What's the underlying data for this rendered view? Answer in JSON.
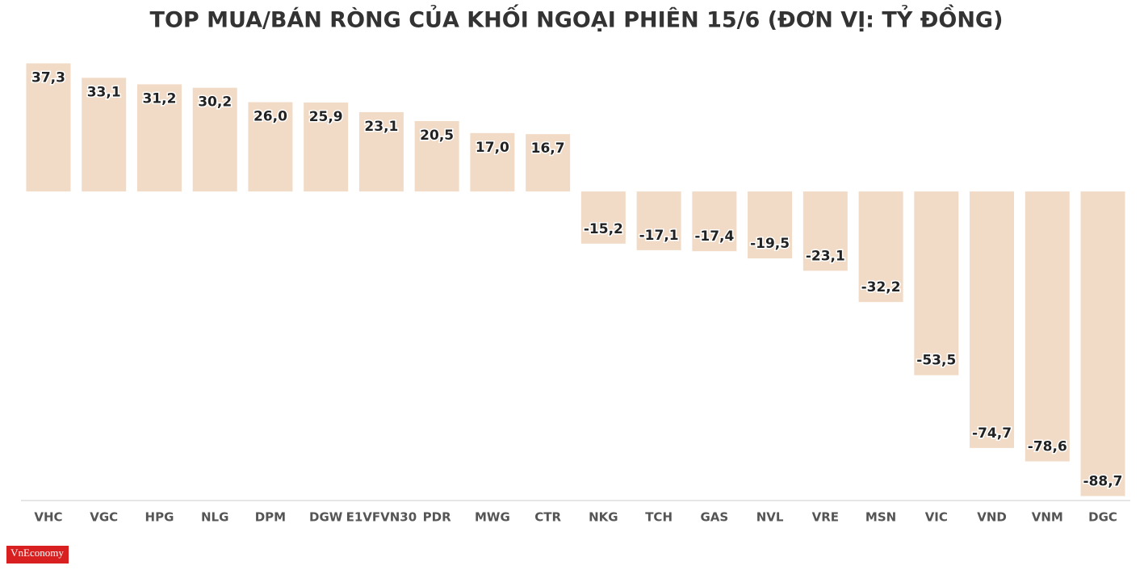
{
  "chart_data": {
    "type": "bar",
    "title": "TOP MUA/BÁN RÒNG CỦA KHỐI NGOẠI PHIÊN 15/6 (ĐƠN VỊ: TỶ ĐỒNG)",
    "categories": [
      "VHC",
      "VGC",
      "HPG",
      "NLG",
      "DPM",
      "DGW",
      "E1VFVN30",
      "PDR",
      "MWG",
      "CTR",
      "NKG",
      "TCH",
      "GAS",
      "NVL",
      "VRE",
      "MSN",
      "VIC",
      "VND",
      "VNM",
      "DGC"
    ],
    "values": [
      37.3,
      33.1,
      31.2,
      30.2,
      26.0,
      25.9,
      23.1,
      20.5,
      17.0,
      16.7,
      -15.2,
      -17.1,
      -17.4,
      -19.5,
      -23.1,
      -32.2,
      -53.5,
      -74.7,
      -78.6,
      -88.7
    ],
    "value_labels": [
      "37,3",
      "33,1",
      "31,2",
      "30,2",
      "26,0",
      "25,9",
      "23,1",
      "20,5",
      "17,0",
      "16,7",
      "-15,2",
      "-17,1",
      "-17,4",
      "-19,5",
      "-23,1",
      "-32,2",
      "-53,5",
      "-74,7",
      "-78,6",
      "-88,7"
    ],
    "color": "#f2dbc6",
    "ylim": [
      -90,
      40
    ],
    "logo": "VnEconomy"
  }
}
